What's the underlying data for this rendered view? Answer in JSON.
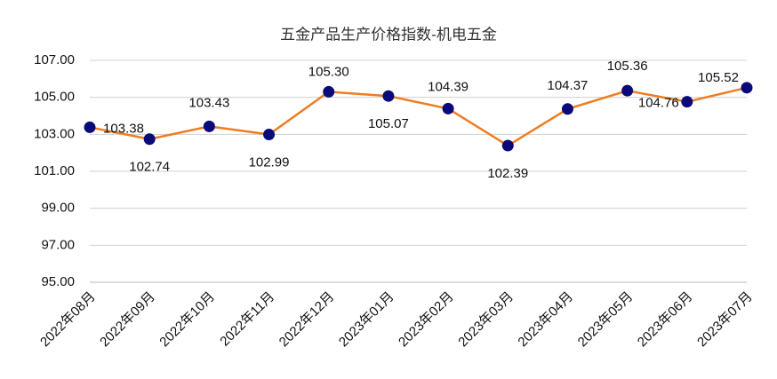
{
  "chart_data": {
    "type": "line",
    "title": "五金产品生产价格指数-机电五金",
    "categories": [
      "2022年08月",
      "2022年09月",
      "2022年10月",
      "2022年11月",
      "2022年12月",
      "2023年01月",
      "2023年02月",
      "2023年03月",
      "2023年04月",
      "2023年05月",
      "2023年06月",
      "2023年07月"
    ],
    "series": [
      {
        "name": "机电五金",
        "color": "#ee7d22",
        "marker_color": "#0a0a78",
        "values": [
          103.38,
          102.74,
          103.43,
          102.99,
          105.3,
          105.07,
          104.39,
          102.39,
          104.37,
          105.36,
          104.76,
          105.52
        ],
        "value_labels": [
          "103.38",
          "102.74",
          "103.43",
          "102.99",
          "105.30",
          "105.07",
          "104.39",
          "102.39",
          "104.37",
          "105.36",
          "104.76",
          "105.52"
        ]
      }
    ],
    "ylim": [
      95,
      107
    ],
    "yticks": [
      {
        "value": 95,
        "label": "95.00"
      },
      {
        "value": 97,
        "label": "97.00"
      },
      {
        "value": 99,
        "label": "99.00"
      },
      {
        "value": 101,
        "label": "101.00"
      },
      {
        "value": 103,
        "label": "103.00"
      },
      {
        "value": 105,
        "label": "105.00"
      },
      {
        "value": 107,
        "label": "107.00"
      }
    ],
    "grid": true
  }
}
